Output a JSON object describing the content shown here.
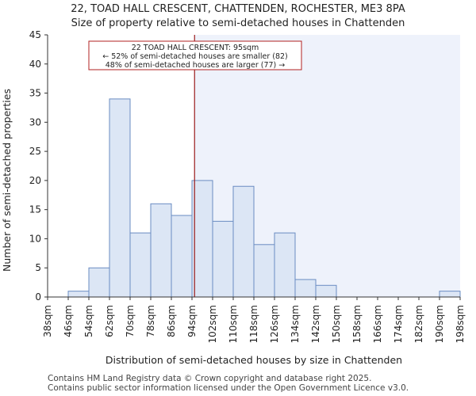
{
  "chart_data": {
    "type": "bar",
    "title": "22, TOAD HALL CRESCENT, CHATTENDEN, ROCHESTER, ME3 8PA",
    "subtitle": "Size of property relative to semi-detached houses in Chattenden",
    "xlabel": "Distribution of semi-detached houses by size in Chattenden",
    "ylabel": "Number of semi-detached properties",
    "ylim": [
      0,
      45
    ],
    "yticks": [
      0,
      5,
      10,
      15,
      20,
      25,
      30,
      35,
      40,
      45
    ],
    "bin_edges": [
      38,
      46,
      54,
      62,
      70,
      78,
      86,
      94,
      102,
      110,
      118,
      126,
      134,
      142,
      150,
      158,
      166,
      174,
      182,
      190,
      198
    ],
    "tick_labels": [
      "38sqm",
      "46sqm",
      "54sqm",
      "62sqm",
      "70sqm",
      "78sqm",
      "86sqm",
      "94sqm",
      "102sqm",
      "110sqm",
      "118sqm",
      "126sqm",
      "134sqm",
      "142sqm",
      "150sqm",
      "158sqm",
      "166sqm",
      "174sqm",
      "182sqm",
      "190sqm",
      "198sqm"
    ],
    "values": [
      0,
      1,
      5,
      34,
      11,
      16,
      14,
      20,
      13,
      19,
      9,
      11,
      3,
      2,
      0,
      0,
      0,
      0,
      0,
      1
    ],
    "property_size": 95,
    "annotation": {
      "line1": "22 TOAD HALL CRESCENT: 95sqm",
      "line2": "← 52% of semi-detached houses are smaller (82)",
      "line3": "48% of semi-detached houses are larger (77) →"
    },
    "colors": {
      "bar_fill": "#dce6f5",
      "bar_stroke": "#6a8cc2",
      "highlight_region": "#eef2fb",
      "marker_line": "#9b1c1c",
      "annotation_border": "#b22222",
      "axis": "#333333"
    }
  },
  "footer": {
    "line1": "Contains HM Land Registry data © Crown copyright and database right 2025.",
    "line2": "Contains public sector information licensed under the Open Government Licence v3.0."
  }
}
